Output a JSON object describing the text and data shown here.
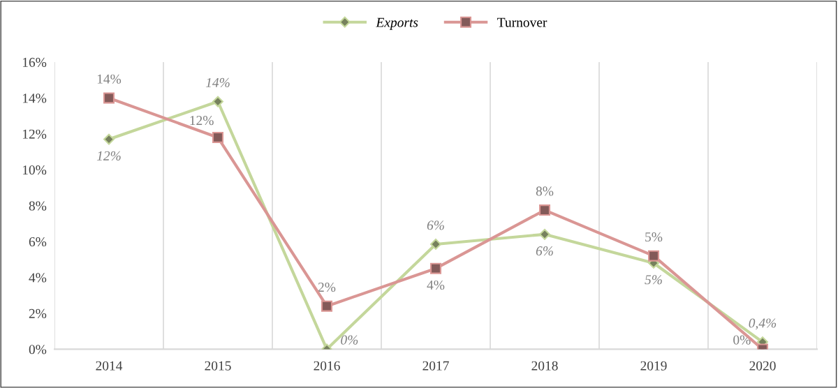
{
  "chart_data": {
    "type": "line",
    "categories": [
      "2014",
      "2015",
      "2016",
      "2017",
      "2018",
      "2019",
      "2020"
    ],
    "series": [
      {
        "name": "Exports",
        "color": "#c4d79b",
        "marker": "diamond",
        "values": [
          11.7,
          13.8,
          0,
          5.85,
          6.4,
          4.8,
          0.4
        ],
        "value_labels": [
          "12%",
          "14%",
          "0%",
          "6%",
          "6%",
          "5%",
          "0,4%"
        ]
      },
      {
        "name": "Turnover",
        "color": "#da9694",
        "marker": "square",
        "values": [
          14.0,
          11.8,
          2.4,
          4.5,
          7.75,
          5.2,
          0
        ],
        "value_labels": [
          "14%",
          "12%",
          "2%",
          "4%",
          "8%",
          "5%",
          "0%"
        ]
      }
    ],
    "ylim": [
      0,
      16
    ],
    "yticks": [
      {
        "value": 0,
        "label": "0%"
      },
      {
        "value": 2,
        "label": "2%"
      },
      {
        "value": 4,
        "label": "4%"
      },
      {
        "value": 6,
        "label": "6%"
      },
      {
        "value": 8,
        "label": "8%"
      },
      {
        "value": 10,
        "label": "10%"
      },
      {
        "value": 12,
        "label": "12%"
      },
      {
        "value": 14,
        "label": "14%"
      },
      {
        "value": 16,
        "label": "16%"
      }
    ],
    "grid": "x",
    "legend": "top",
    "line_style": "solid"
  }
}
